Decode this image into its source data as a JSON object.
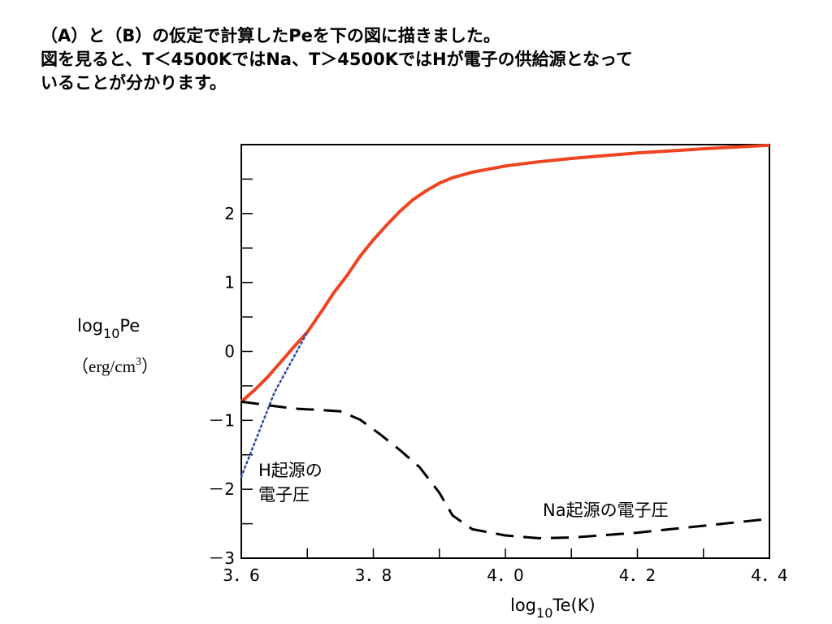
{
  "heading": {
    "line1": "（A）と（B）の仮定で計算したPeを下の図に描きました。",
    "line2": "図を見ると、T＜4500KではNa、T＞4500KではHが電子の供給源となって",
    "line3": "いることが分かります。"
  },
  "chart_data": {
    "type": "line",
    "title": "",
    "xlabel": {
      "prefix": "log",
      "sub": "10",
      "suffix": "Te(K)"
    },
    "ylabel": {
      "prefix": "log",
      "sub": "10",
      "suffix": "Pe",
      "unit_open": "（erg/cm",
      "unit_sup": "3",
      "unit_close": "）"
    },
    "xlim": [
      3.6,
      4.4
    ],
    "ylim": [
      -3,
      3
    ],
    "x_ticks": [
      3.6,
      3.8,
      4.0,
      4.2,
      4.4
    ],
    "x_tick_labels": [
      "3．6",
      "3．8",
      "4．0",
      "4．2",
      "4．4"
    ],
    "y_ticks": [
      -3,
      -2,
      -1,
      0,
      1,
      2
    ],
    "y_tick_labels": [
      "－3",
      "－2",
      "－1",
      "0",
      "1",
      "2"
    ],
    "grid": false,
    "series": [
      {
        "name": "",
        "style": "solid",
        "color": "#ee4422",
        "points": [
          [
            3.6,
            -0.73
          ],
          [
            3.62,
            -0.56
          ],
          [
            3.64,
            -0.37
          ],
          [
            3.66,
            -0.15
          ],
          [
            3.68,
            0.07
          ],
          [
            3.7,
            0.28
          ],
          [
            3.72,
            0.56
          ],
          [
            3.74,
            0.85
          ],
          [
            3.76,
            1.1
          ],
          [
            3.78,
            1.38
          ],
          [
            3.8,
            1.62
          ],
          [
            3.82,
            1.83
          ],
          [
            3.84,
            2.03
          ],
          [
            3.86,
            2.2
          ],
          [
            3.88,
            2.33
          ],
          [
            3.9,
            2.44
          ],
          [
            3.92,
            2.52
          ],
          [
            3.95,
            2.6
          ],
          [
            4.0,
            2.69
          ],
          [
            4.05,
            2.75
          ],
          [
            4.1,
            2.8
          ],
          [
            4.2,
            2.88
          ],
          [
            4.3,
            2.94
          ],
          [
            4.4,
            2.99
          ]
        ]
      },
      {
        "name": "Na起源の電子圧",
        "style": "dashed",
        "color": "#000000",
        "points": [
          [
            3.6,
            -0.73
          ],
          [
            3.64,
            -0.78
          ],
          [
            3.68,
            -0.83
          ],
          [
            3.72,
            -0.85
          ],
          [
            3.75,
            -0.87
          ],
          [
            3.78,
            -0.99
          ],
          [
            3.81,
            -1.2
          ],
          [
            3.84,
            -1.43
          ],
          [
            3.87,
            -1.68
          ],
          [
            3.9,
            -2.05
          ],
          [
            3.92,
            -2.38
          ],
          [
            3.95,
            -2.58
          ],
          [
            4.0,
            -2.67
          ],
          [
            4.05,
            -2.71
          ],
          [
            4.1,
            -2.7
          ],
          [
            4.2,
            -2.63
          ],
          [
            4.3,
            -2.53
          ],
          [
            4.4,
            -2.43
          ]
        ]
      },
      {
        "name": "H起源の電子圧",
        "style": "dotted",
        "color": "#3344aa",
        "points": [
          [
            3.6,
            -1.82
          ],
          [
            3.65,
            -0.6
          ],
          [
            3.7,
            0.28
          ]
        ]
      }
    ],
    "annotations": [
      {
        "line1": "H起源の",
        "line2": "電子圧"
      },
      {
        "line1": "Na起源の電子圧",
        "line2": ""
      }
    ]
  }
}
